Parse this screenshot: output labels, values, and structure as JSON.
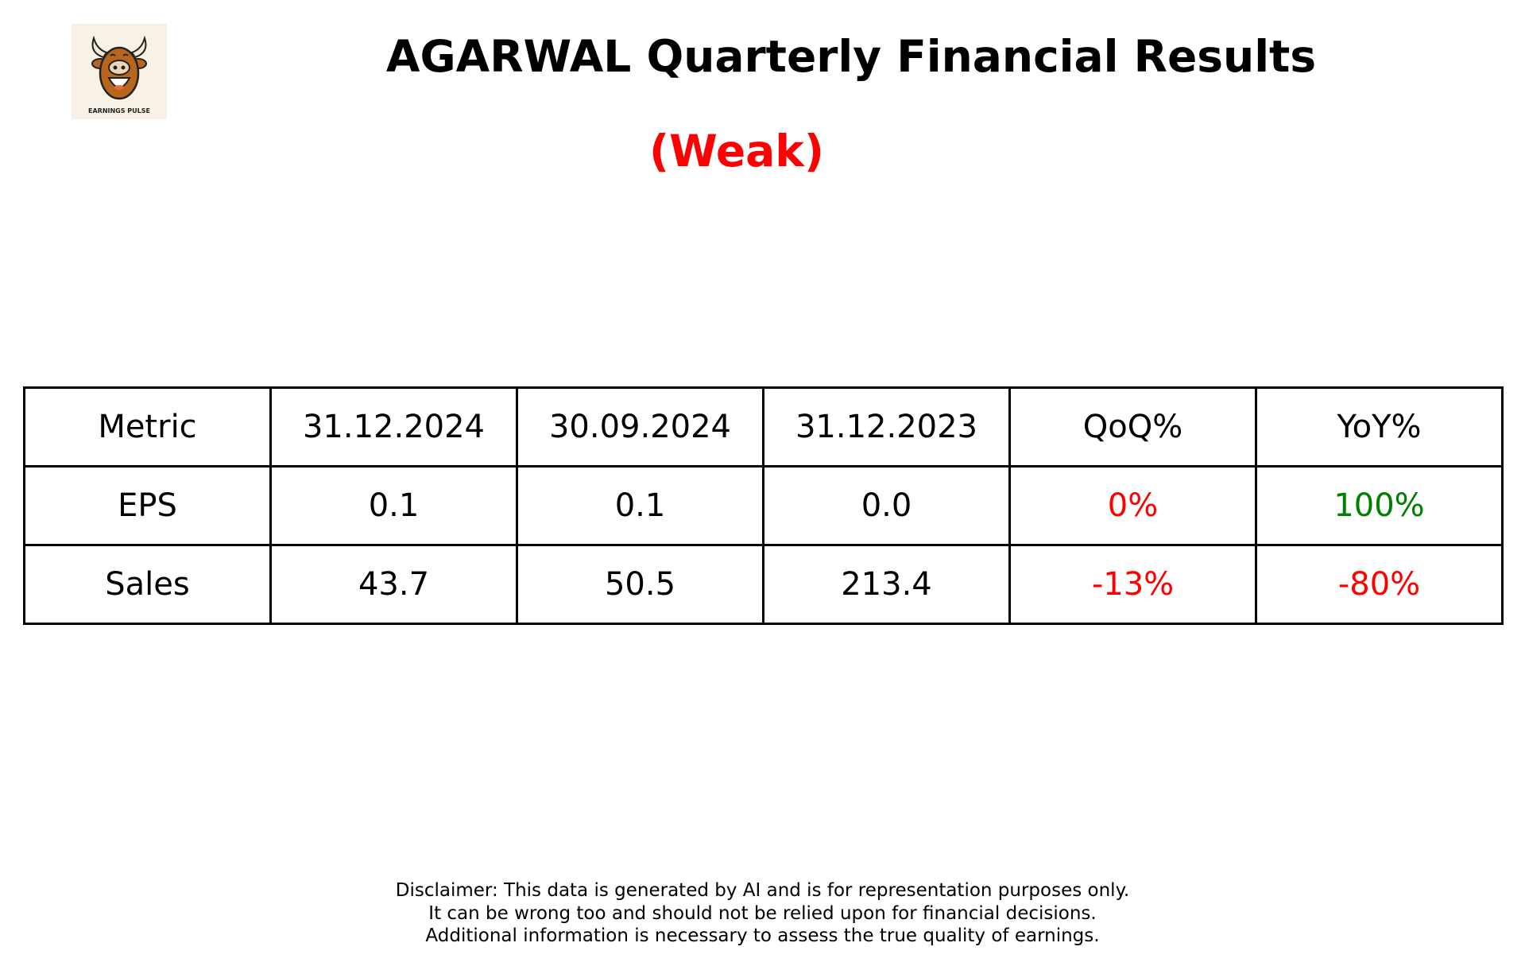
{
  "header": {
    "logo_text": "EARNINGS PULSE",
    "logo_icon": "bull-head-icon",
    "title": "AGARWAL Quarterly Financial Results",
    "rating": "(Weak)",
    "rating_color": "#ff0000"
  },
  "table": {
    "headers": [
      "Metric",
      "31.12.2024",
      "30.09.2024",
      "31.12.2023",
      "QoQ%",
      "YoY%"
    ],
    "rows": [
      {
        "cells": [
          "EPS",
          "0.1",
          "0.1",
          "0.0",
          "0%",
          "100%"
        ],
        "colors": [
          "#000000",
          "#000000",
          "#000000",
          "#000000",
          "#ff0000",
          "#008000"
        ]
      },
      {
        "cells": [
          "Sales",
          "43.7",
          "50.5",
          "213.4",
          "-13%",
          "-80%"
        ],
        "colors": [
          "#000000",
          "#000000",
          "#000000",
          "#000000",
          "#ff0000",
          "#ff0000"
        ]
      }
    ]
  },
  "disclaimer": {
    "lines": [
      "Disclaimer: This data is generated by AI and is for representation purposes only.",
      "It can be wrong too and should not be relied upon for financial decisions.",
      "Additional information is necessary to assess the true quality of earnings."
    ]
  }
}
